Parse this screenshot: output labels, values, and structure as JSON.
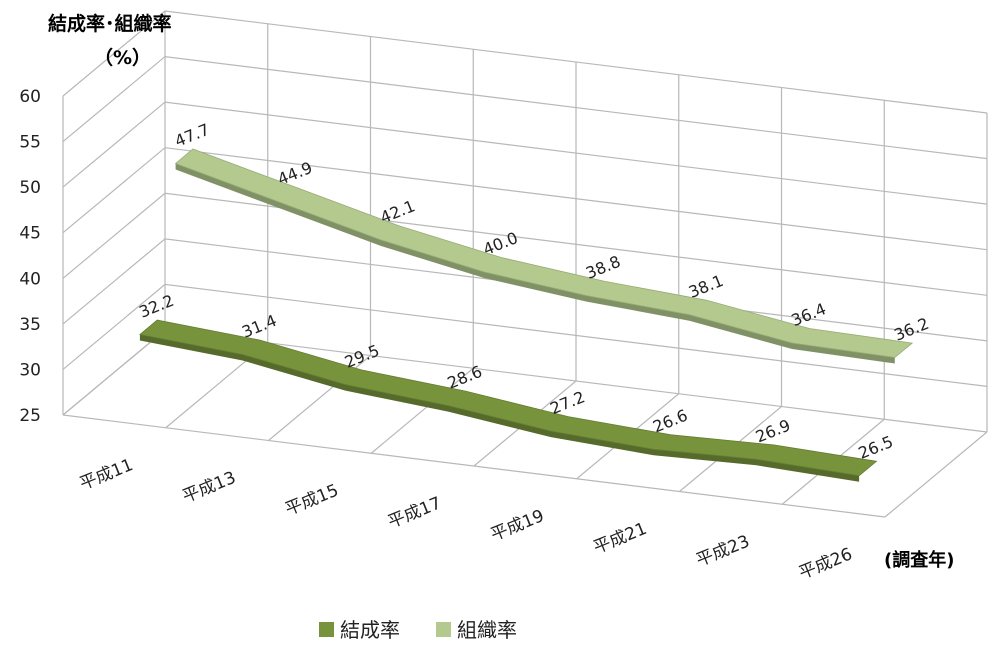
{
  "chart_data": {
    "type": "line",
    "style": "3d-ribbon",
    "title": "",
    "ylabel_line1": "結成率･組織率",
    "ylabel_line2": "（%）",
    "xlabel": "(調査年)",
    "categories": [
      "平成11",
      "平成13",
      "平成15",
      "平成17",
      "平成19",
      "平成21",
      "平成23",
      "平成26"
    ],
    "ylim": [
      25,
      60
    ],
    "yticks": [
      "60",
      "55",
      "50",
      "45",
      "40",
      "35",
      "30",
      "25"
    ],
    "grid": true,
    "legend_position": "bottom",
    "series": [
      {
        "name": "結成率",
        "color": "#77933c",
        "values": [
          32.2,
          31.4,
          29.5,
          28.6,
          27.2,
          26.6,
          26.9,
          26.5
        ],
        "labels": [
          "32.2",
          "31.4",
          "29.5",
          "28.6",
          "27.2",
          "26.6",
          "26.9",
          "26.5"
        ]
      },
      {
        "name": "組織率",
        "color": "#b3c98d",
        "values": [
          47.7,
          44.9,
          42.1,
          40.0,
          38.8,
          38.1,
          36.4,
          36.2
        ],
        "labels": [
          "47.7",
          "44.9",
          "42.1",
          "40.0",
          "38.8",
          "38.1",
          "36.4",
          "36.2"
        ]
      }
    ]
  }
}
